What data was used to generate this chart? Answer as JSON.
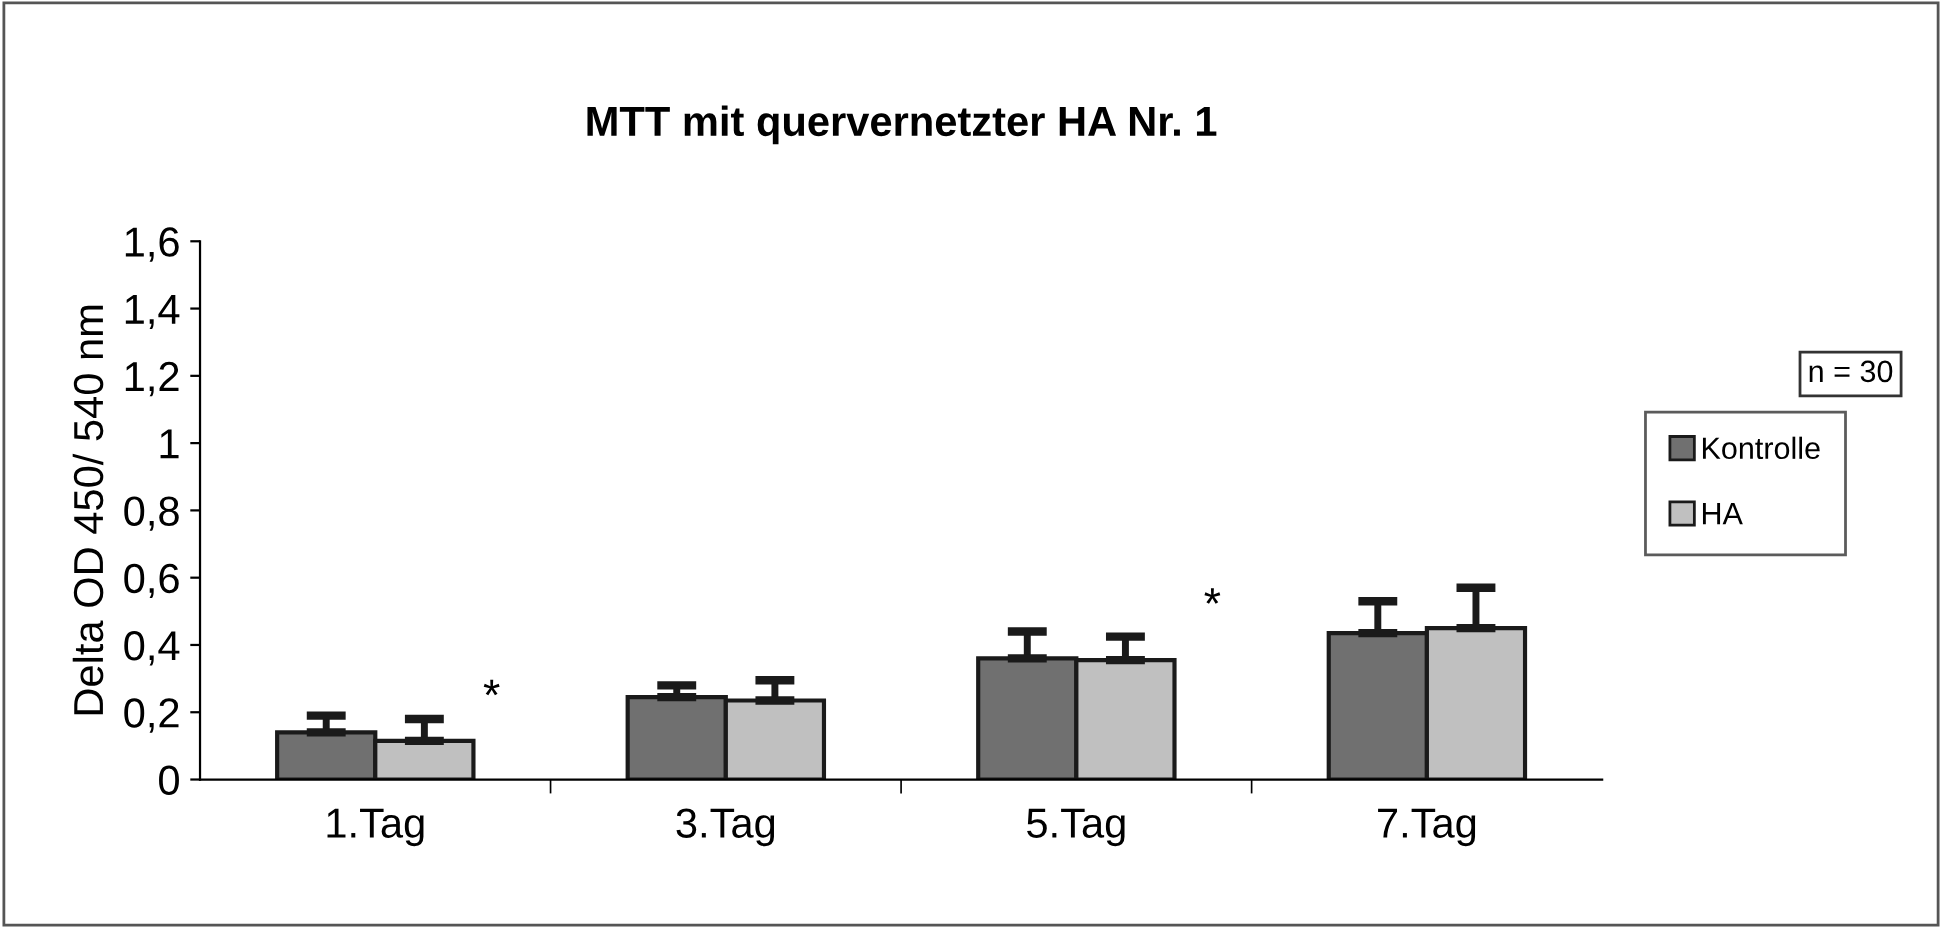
{
  "chart_data": {
    "type": "bar",
    "title": "MTT mit quervernetzter HA Nr. 1",
    "ylabel": "Delta OD 450/ 540 nm",
    "categories": [
      "1.Tag",
      "3.Tag",
      "5.Tag",
      "7.Tag"
    ],
    "series": [
      {
        "name": "Kontrolle",
        "color": "#707070",
        "values": [
          0.14,
          0.245,
          0.36,
          0.435
        ],
        "errors": [
          [
            0.14,
            0.19
          ],
          [
            0.245,
            0.28
          ],
          [
            0.36,
            0.44
          ],
          [
            0.435,
            0.53
          ]
        ]
      },
      {
        "name": "HA",
        "color": "#c0c0c0",
        "values": [
          0.115,
          0.235,
          0.355,
          0.45
        ],
        "errors": [
          [
            0.115,
            0.18
          ],
          [
            0.235,
            0.295
          ],
          [
            0.355,
            0.425
          ],
          [
            0.45,
            0.57
          ]
        ]
      }
    ],
    "annotations": [
      "*",
      "*",
      "n = 30"
    ],
    "ylim": [
      0,
      1.6
    ],
    "yticks": [
      0,
      {
        "value": 0.2,
        "label": "0,2"
      },
      {
        "value": 0.4,
        "label": "0,4"
      },
      {
        "value": 0.6,
        "label": "0,6"
      },
      {
        "value": 0.8,
        "label": "0,8"
      },
      1,
      {
        "value": 1.2,
        "label": "1,2"
      },
      {
        "value": 1.4,
        "label": "1,4"
      },
      {
        "value": 1.6,
        "label": "1,6"
      }
    ],
    "grid": false,
    "legend": "right"
  }
}
